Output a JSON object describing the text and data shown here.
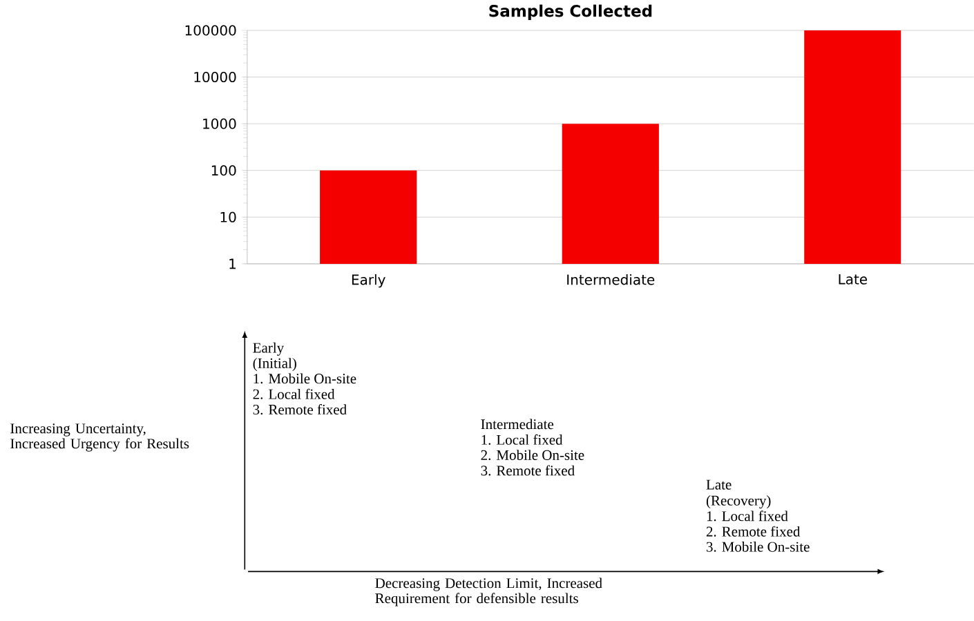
{
  "chart_data": [
    {
      "type": "bar",
      "title": "Samples Collected",
      "categories": [
        "Early",
        "Intermediate",
        "Late"
      ],
      "values": [
        100,
        1000,
        100000
      ],
      "color": "#f40000",
      "log": true,
      "ylim": [
        1,
        100000
      ],
      "yticks": [
        1,
        10,
        100,
        1000,
        10000,
        100000
      ],
      "grid": "y"
    },
    {
      "type": "other",
      "xlabel": "Decreasing Detection Limit, Increased Requirement for defensible results",
      "ylabel": "Increasing Uncertainty, Increased Urgency for Results",
      "annotations": [
        "Early",
        "(Initial)",
        "1. Mobile On-site",
        "2. Local fixed",
        "3. Remote fixed",
        "Intermediate",
        "1. Local fixed",
        "2. Mobile On-site",
        "3. Remote fixed",
        "Late",
        "(Recovery)",
        "1. Local fixed",
        "2. Remote fixed",
        "3. Mobile On-site"
      ]
    }
  ]
}
